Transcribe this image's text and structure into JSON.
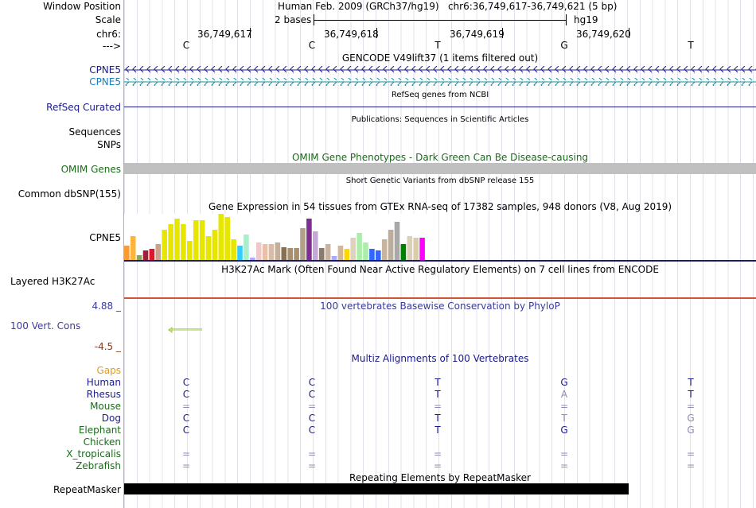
{
  "header": {
    "window_position_label": "Window Position",
    "scale_label": "Scale",
    "chrom_label": "chr6:",
    "strand_label": "--->",
    "position_text": "Human Feb. 2009 (GRCh37/hg19)   chr6:36,749,617-36,749,621 (5 bp)",
    "scale_text": "2 bases",
    "assembly": "hg19",
    "coords": [
      "36,749,617",
      "36,749,618",
      "36,749,619",
      "36,749,620"
    ],
    "bases": [
      "C",
      "C",
      "T",
      "G",
      "T"
    ]
  },
  "tracks": {
    "gencode_title": "GENCODE V49lift37 (1 items filtered out)",
    "gene_1": "CPNE5",
    "gene_2": "CPNE5",
    "refseq_label": "RefSeq Curated",
    "refseq_title": "RefSeq genes from NCBI",
    "publications_title": "Publications: Sequences in Scientific Articles",
    "sequences_label": "Sequences",
    "snps_label": "SNPs",
    "omim_title": "OMIM Gene Phenotypes - Dark Green Can Be Disease-causing",
    "omim_label": "OMIM Genes",
    "dbsnp_title": "Short Genetic Variants from dbSNP release 155",
    "dbsnp_label": "Common dbSNP(155)",
    "gtex_title": "Gene Expression in 54 tissues from GTEx RNA-seq of 17382 samples, 948 donors (V8, Aug 2019)",
    "gtex_label": "CPNE5",
    "h3k27ac_title": "H3K27Ac Mark (Often Found Near Active Regulatory Elements) on 7 cell lines from ENCODE",
    "h3k27ac_label": "Layered H3K27Ac",
    "phylop_title": "100 vertebrates Basewise Conservation by PhyloP",
    "phylop_max": "4.88 _",
    "phylop_label": "100 Vert. Cons",
    "phylop_min": "-4.5 _",
    "multiz_title": "Multiz Alignments of 100 Vertebrates",
    "gaps_label": "Gaps",
    "repeat_title": "Repeating Elements by RepeatMasker",
    "repeat_label": "RepeatMasker"
  },
  "alignment": [
    {
      "species": "Human",
      "color": "#1a1a8c",
      "bases": [
        "C",
        "C",
        "T",
        "G",
        "T"
      ],
      "faded": [
        false,
        false,
        false,
        false,
        false
      ]
    },
    {
      "species": "Rhesus",
      "color": "#1a1a8c",
      "bases": [
        "C",
        "C",
        "T",
        "A",
        "T"
      ],
      "faded": [
        false,
        false,
        false,
        true,
        false
      ]
    },
    {
      "species": "Mouse",
      "color": "#1a6b1a",
      "bases": [
        "=",
        "=",
        "=",
        "=",
        "="
      ],
      "faded": [
        true,
        true,
        true,
        true,
        true
      ]
    },
    {
      "species": "Dog",
      "color": "#1a1a8c",
      "bases": [
        "C",
        "C",
        "T",
        "T",
        "G"
      ],
      "faded": [
        false,
        false,
        false,
        true,
        true
      ]
    },
    {
      "species": "Elephant",
      "color": "#1a6b1a",
      "bases": [
        "C",
        "C",
        "T",
        "G",
        "G"
      ],
      "faded": [
        false,
        false,
        false,
        false,
        true
      ]
    },
    {
      "species": "Chicken",
      "color": "#1a6b1a",
      "bases": [
        "",
        "",
        "",
        "",
        ""
      ],
      "faded": [
        false,
        false,
        false,
        false,
        false
      ]
    },
    {
      "species": "X_tropicalis",
      "color": "#1a6b1a",
      "bases": [
        "=",
        "=",
        "=",
        "=",
        "="
      ],
      "faded": [
        true,
        true,
        true,
        true,
        true
      ]
    },
    {
      "species": "Zebrafish",
      "color": "#1a6b1a",
      "bases": [
        "=",
        "=",
        "=",
        "=",
        "="
      ],
      "faded": [
        true,
        true,
        true,
        true,
        true
      ]
    }
  ],
  "gtex_bars": [
    {
      "color": "#ff9a2e",
      "value": 18
    },
    {
      "color": "#ffb53a",
      "value": 30
    },
    {
      "color": "#88aa55",
      "value": 6
    },
    {
      "color": "#a0203b",
      "value": 12
    },
    {
      "color": "#e0162b",
      "value": 14
    },
    {
      "color": "#c8a28a",
      "value": 20
    },
    {
      "color": "#e6e600",
      "value": 38
    },
    {
      "color": "#e6e600",
      "value": 45
    },
    {
      "color": "#e6e600",
      "value": 52
    },
    {
      "color": "#e6e600",
      "value": 45
    },
    {
      "color": "#e6e600",
      "value": 24
    },
    {
      "color": "#e6e600",
      "value": 50
    },
    {
      "color": "#e6e600",
      "value": 50
    },
    {
      "color": "#e6e600",
      "value": 30
    },
    {
      "color": "#e6e600",
      "value": 38
    },
    {
      "color": "#e6e600",
      "value": 58
    },
    {
      "color": "#e6e600",
      "value": 54
    },
    {
      "color": "#e6e600",
      "value": 26
    },
    {
      "color": "#33ccff",
      "value": 18
    },
    {
      "color": "#aaeecc",
      "value": 32
    },
    {
      "color": "#aaaaff",
      "value": 3
    },
    {
      "color": "#f0c8c8",
      "value": 22
    },
    {
      "color": "#e8c0a8",
      "value": 20
    },
    {
      "color": "#d8bca8",
      "value": 20
    },
    {
      "color": "#c4b098",
      "value": 22
    },
    {
      "color": "#8a7050",
      "value": 16
    },
    {
      "color": "#a8906a",
      "value": 15
    },
    {
      "color": "#a8906a",
      "value": 15
    },
    {
      "color": "#b4a088",
      "value": 40
    },
    {
      "color": "#7f2f8f",
      "value": 52
    },
    {
      "color": "#c6a8d8",
      "value": 36
    },
    {
      "color": "#8a7a6a",
      "value": 15
    },
    {
      "color": "#c8b4a0",
      "value": 20
    },
    {
      "color": "#aaaaff",
      "value": 5
    },
    {
      "color": "#d4b896",
      "value": 18
    },
    {
      "color": "#ffd700",
      "value": 14
    },
    {
      "color": "#e0d0c0",
      "value": 28
    },
    {
      "color": "#aaeeaa",
      "value": 34
    },
    {
      "color": "#aaeeaa",
      "value": 22
    },
    {
      "color": "#3366ff",
      "value": 14
    },
    {
      "color": "#3366ff",
      "value": 12
    },
    {
      "color": "#c8b49c",
      "value": 26
    },
    {
      "color": "#bcae9c",
      "value": 38
    },
    {
      "color": "#a8a8a8",
      "value": 48
    },
    {
      "color": "#008000",
      "value": 20
    },
    {
      "color": "#ddd0b8",
      "value": 30
    },
    {
      "color": "#ddccaa",
      "value": 28
    },
    {
      "color": "#ff00ff",
      "value": 28
    }
  ]
}
